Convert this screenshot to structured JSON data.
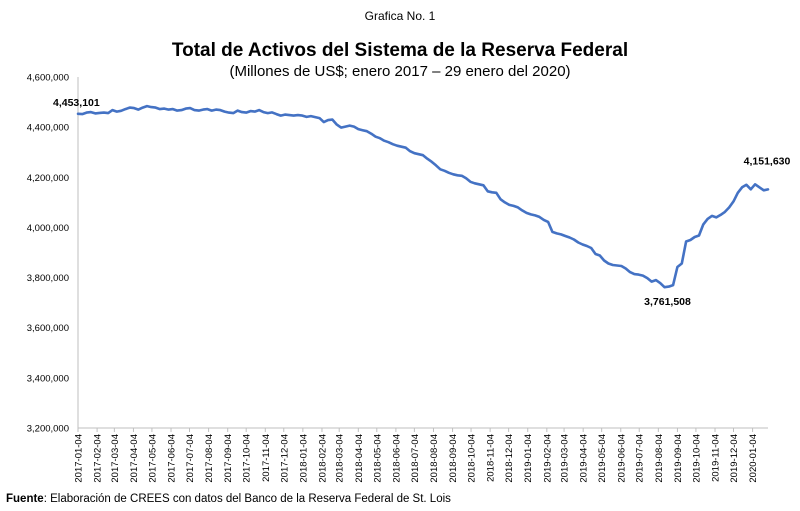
{
  "caption": "Grafica No. 1",
  "source": {
    "label": "Fuente",
    "text": ": Elaboración de CREES con datos del Banco de la Reserva Federal de St. Lois"
  },
  "chart_data": {
    "type": "line",
    "title": "Total de Activos del Sistema de la Reserva Federal",
    "subtitle": "(Millones de US$; enero 2017 – 29 enero del 2020)",
    "xlabel": "",
    "ylabel": "",
    "ylim": [
      3200000,
      4600000
    ],
    "yticks": [
      3200000,
      3400000,
      3600000,
      3800000,
      4000000,
      4200000,
      4400000,
      4600000
    ],
    "ytick_labels": [
      "3,200,000",
      "3,400,000",
      "3,600,000",
      "3,800,000",
      "4,000,000",
      "4,200,000",
      "4,400,000",
      "4,600,000"
    ],
    "x_tick_labels": [
      "2017-01-04",
      "2017-02-04",
      "2017-03-04",
      "2017-04-04",
      "2017-05-04",
      "2017-06-04",
      "2017-07-04",
      "2017-08-04",
      "2017-09-04",
      "2017-10-04",
      "2017-11-04",
      "2017-12-04",
      "2018-01-04",
      "2018-02-04",
      "2018-03-04",
      "2018-04-04",
      "2018-05-04",
      "2018-06-04",
      "2018-07-04",
      "2018-08-04",
      "2018-09-04",
      "2018-10-04",
      "2018-11-04",
      "2018-12-04",
      "2019-01-04",
      "2019-02-04",
      "2019-03-04",
      "2019-04-04",
      "2019-05-04",
      "2019-06-04",
      "2019-07-04",
      "2019-08-04",
      "2019-09-04",
      "2019-10-04",
      "2019-11-04",
      "2019-12-04",
      "2020-01-04"
    ],
    "grid": false,
    "legend": "none",
    "line_color": "#4472C4",
    "series": [
      {
        "name": "",
        "points": [
          [
            "2017-01-04",
            4453101
          ],
          [
            "2017-01-11",
            4452000
          ],
          [
            "2017-01-18",
            4458000
          ],
          [
            "2017-01-25",
            4460000
          ],
          [
            "2017-02-01",
            4455000
          ],
          [
            "2017-02-08",
            4457000
          ],
          [
            "2017-02-15",
            4458000
          ],
          [
            "2017-02-22",
            4456000
          ],
          [
            "2017-03-01",
            4468000
          ],
          [
            "2017-03-08",
            4462000
          ],
          [
            "2017-03-15",
            4465000
          ],
          [
            "2017-03-22",
            4472000
          ],
          [
            "2017-03-29",
            4478000
          ],
          [
            "2017-04-05",
            4476000
          ],
          [
            "2017-04-12",
            4470000
          ],
          [
            "2017-04-19",
            4478000
          ],
          [
            "2017-04-26",
            4484000
          ],
          [
            "2017-05-03",
            4480000
          ],
          [
            "2017-05-10",
            4478000
          ],
          [
            "2017-05-17",
            4472000
          ],
          [
            "2017-05-24",
            4474000
          ],
          [
            "2017-05-31",
            4470000
          ],
          [
            "2017-06-07",
            4472000
          ],
          [
            "2017-06-14",
            4466000
          ],
          [
            "2017-06-21",
            4468000
          ],
          [
            "2017-06-28",
            4474000
          ],
          [
            "2017-07-05",
            4476000
          ],
          [
            "2017-07-12",
            4468000
          ],
          [
            "2017-07-19",
            4466000
          ],
          [
            "2017-07-26",
            4470000
          ],
          [
            "2017-08-02",
            4472000
          ],
          [
            "2017-08-09",
            4466000
          ],
          [
            "2017-08-16",
            4470000
          ],
          [
            "2017-08-23",
            4468000
          ],
          [
            "2017-08-30",
            4462000
          ],
          [
            "2017-09-06",
            4458000
          ],
          [
            "2017-09-13",
            4456000
          ],
          [
            "2017-09-20",
            4466000
          ],
          [
            "2017-09-27",
            4460000
          ],
          [
            "2017-10-04",
            4458000
          ],
          [
            "2017-10-11",
            4464000
          ],
          [
            "2017-10-18",
            4462000
          ],
          [
            "2017-10-25",
            4468000
          ],
          [
            "2017-11-01",
            4460000
          ],
          [
            "2017-11-08",
            4456000
          ],
          [
            "2017-11-15",
            4459000
          ],
          [
            "2017-11-22",
            4452000
          ],
          [
            "2017-11-29",
            4446000
          ],
          [
            "2017-12-06",
            4450000
          ],
          [
            "2017-12-13",
            4448000
          ],
          [
            "2017-12-20",
            4446000
          ],
          [
            "2017-12-27",
            4448000
          ],
          [
            "2018-01-03",
            4446000
          ],
          [
            "2018-01-10",
            4441000
          ],
          [
            "2018-01-17",
            4444000
          ],
          [
            "2018-01-24",
            4440000
          ],
          [
            "2018-01-31",
            4436000
          ],
          [
            "2018-02-07",
            4420000
          ],
          [
            "2018-02-14",
            4428000
          ],
          [
            "2018-02-21",
            4430000
          ],
          [
            "2018-02-28",
            4410000
          ],
          [
            "2018-03-07",
            4398000
          ],
          [
            "2018-03-14",
            4402000
          ],
          [
            "2018-03-21",
            4406000
          ],
          [
            "2018-03-28",
            4402000
          ],
          [
            "2018-04-04",
            4392000
          ],
          [
            "2018-04-11",
            4388000
          ],
          [
            "2018-04-18",
            4384000
          ],
          [
            "2018-04-25",
            4374000
          ],
          [
            "2018-05-02",
            4362000
          ],
          [
            "2018-05-09",
            4356000
          ],
          [
            "2018-05-16",
            4346000
          ],
          [
            "2018-05-23",
            4340000
          ],
          [
            "2018-05-30",
            4332000
          ],
          [
            "2018-06-06",
            4326000
          ],
          [
            "2018-06-13",
            4322000
          ],
          [
            "2018-06-20",
            4318000
          ],
          [
            "2018-06-27",
            4304000
          ],
          [
            "2018-07-04",
            4296000
          ],
          [
            "2018-07-11",
            4292000
          ],
          [
            "2018-07-18",
            4288000
          ],
          [
            "2018-07-25",
            4274000
          ],
          [
            "2018-08-01",
            4262000
          ],
          [
            "2018-08-08",
            4248000
          ],
          [
            "2018-08-15",
            4232000
          ],
          [
            "2018-08-22",
            4226000
          ],
          [
            "2018-08-29",
            4218000
          ],
          [
            "2018-09-05",
            4212000
          ],
          [
            "2018-09-12",
            4208000
          ],
          [
            "2018-09-19",
            4206000
          ],
          [
            "2018-09-26",
            4196000
          ],
          [
            "2018-10-03",
            4182000
          ],
          [
            "2018-10-10",
            4176000
          ],
          [
            "2018-10-17",
            4172000
          ],
          [
            "2018-10-24",
            4168000
          ],
          [
            "2018-10-31",
            4144000
          ],
          [
            "2018-11-07",
            4140000
          ],
          [
            "2018-11-14",
            4138000
          ],
          [
            "2018-11-21",
            4112000
          ],
          [
            "2018-11-28",
            4100000
          ],
          [
            "2018-12-05",
            4090000
          ],
          [
            "2018-12-12",
            4086000
          ],
          [
            "2018-12-19",
            4080000
          ],
          [
            "2018-12-26",
            4068000
          ],
          [
            "2019-01-02",
            4058000
          ],
          [
            "2019-01-09",
            4052000
          ],
          [
            "2019-01-16",
            4048000
          ],
          [
            "2019-01-23",
            4042000
          ],
          [
            "2019-01-30",
            4030000
          ],
          [
            "2019-02-06",
            4022000
          ],
          [
            "2019-02-13",
            3982000
          ],
          [
            "2019-02-20",
            3976000
          ],
          [
            "2019-02-27",
            3972000
          ],
          [
            "2019-03-06",
            3966000
          ],
          [
            "2019-03-13",
            3960000
          ],
          [
            "2019-03-20",
            3952000
          ],
          [
            "2019-03-27",
            3940000
          ],
          [
            "2019-04-03",
            3932000
          ],
          [
            "2019-04-10",
            3926000
          ],
          [
            "2019-04-17",
            3918000
          ],
          [
            "2019-04-24",
            3894000
          ],
          [
            "2019-05-01",
            3888000
          ],
          [
            "2019-05-08",
            3868000
          ],
          [
            "2019-05-15",
            3856000
          ],
          [
            "2019-05-22",
            3850000
          ],
          [
            "2019-05-29",
            3848000
          ],
          [
            "2019-06-05",
            3846000
          ],
          [
            "2019-06-12",
            3836000
          ],
          [
            "2019-06-19",
            3822000
          ],
          [
            "2019-06-26",
            3814000
          ],
          [
            "2019-07-03",
            3812000
          ],
          [
            "2019-07-10",
            3808000
          ],
          [
            "2019-07-17",
            3798000
          ],
          [
            "2019-07-24",
            3784000
          ],
          [
            "2019-07-31",
            3790000
          ],
          [
            "2019-08-07",
            3778000
          ],
          [
            "2019-08-14",
            3761508
          ],
          [
            "2019-08-21",
            3764000
          ],
          [
            "2019-08-28",
            3770000
          ],
          [
            "2019-09-04",
            3842000
          ],
          [
            "2019-09-11",
            3856000
          ],
          [
            "2019-09-18",
            3944000
          ],
          [
            "2019-09-25",
            3950000
          ],
          [
            "2019-10-02",
            3962000
          ],
          [
            "2019-10-09",
            3968000
          ],
          [
            "2019-10-16",
            4012000
          ],
          [
            "2019-10-23",
            4034000
          ],
          [
            "2019-10-30",
            4046000
          ],
          [
            "2019-11-06",
            4040000
          ],
          [
            "2019-11-13",
            4050000
          ],
          [
            "2019-11-20",
            4062000
          ],
          [
            "2019-11-27",
            4080000
          ],
          [
            "2019-12-04",
            4104000
          ],
          [
            "2019-12-11",
            4138000
          ],
          [
            "2019-12-18",
            4160000
          ],
          [
            "2019-12-25",
            4170000
          ],
          [
            "2020-01-01",
            4152000
          ],
          [
            "2020-01-08",
            4172000
          ],
          [
            "2020-01-15",
            4160000
          ],
          [
            "2020-01-22",
            4148000
          ],
          [
            "2020-01-29",
            4151630
          ]
        ]
      }
    ],
    "annotations": [
      {
        "date": "2017-01-04",
        "value": 4453101,
        "label": "4,453,101",
        "placement": "above-left"
      },
      {
        "date": "2019-08-14",
        "value": 3761508,
        "label": "3,761,508",
        "placement": "below"
      },
      {
        "date": "2020-01-29",
        "value": 4151630,
        "label": "4,151,630",
        "placement": "above"
      }
    ]
  }
}
